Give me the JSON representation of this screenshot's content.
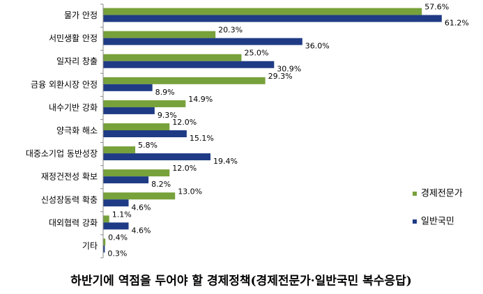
{
  "chart_data": {
    "type": "hbar",
    "title": "하반기에 역점을 두어야 할 경제정책(경제전문가·일반국민 복수응답)",
    "categories": [
      "물가 안정",
      "서민생활 안정",
      "일자리 창출",
      "금융 외환시장 안정",
      "내수기반 강화",
      "양극화 해소",
      "대중소기업 동반성장",
      "재정건전성 확보",
      "신성장동력 확충",
      "대외협력 강화",
      "기타"
    ],
    "series": [
      {
        "name": "경제전문가",
        "color": "#77a13a",
        "values": [
          57.6,
          20.3,
          25.0,
          29.3,
          14.9,
          12.0,
          5.8,
          12.0,
          13.0,
          1.1,
          0.4
        ],
        "value_labels": [
          "57.6%",
          "20.3%",
          "25.0%",
          "29.3%",
          "14.9%",
          "12.0%",
          "5.8%",
          "12.0%",
          "13.0%",
          "1.1%",
          "0.4%"
        ]
      },
      {
        "name": "일반국민",
        "color": "#1f3b85",
        "values": [
          61.2,
          36.0,
          30.9,
          8.9,
          9.3,
          15.1,
          19.4,
          8.2,
          4.6,
          4.6,
          0.3
        ],
        "value_labels": [
          "61.2%",
          "36.0%",
          "30.9%",
          "8.9%",
          "9.3%",
          "15.1%",
          "19.4%",
          "8.2%",
          "4.6%",
          "4.6%",
          "0.3%"
        ]
      }
    ],
    "xlim": [
      0,
      65
    ],
    "legend": "right"
  }
}
